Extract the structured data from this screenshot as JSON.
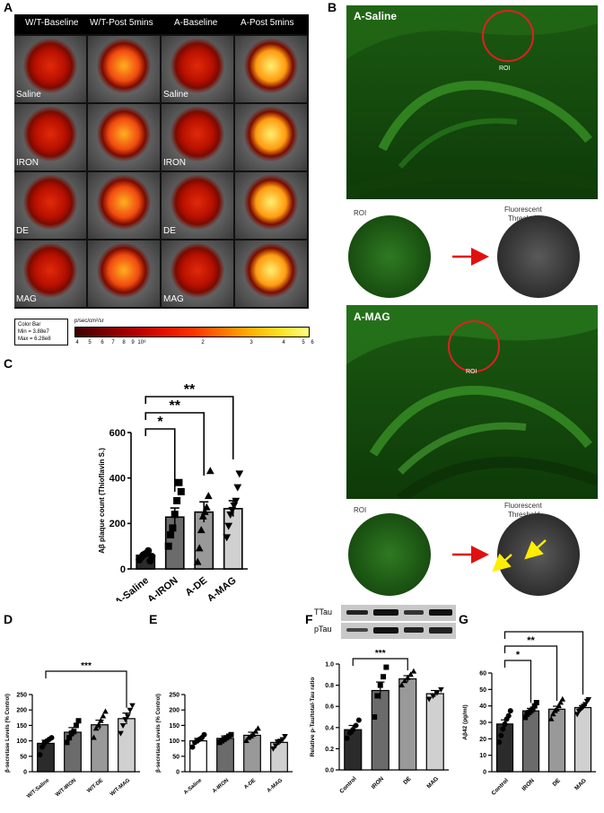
{
  "panels": {
    "a": "A",
    "b": "B",
    "c": "C",
    "d": "D",
    "e": "E",
    "f": "F",
    "g": "G"
  },
  "panel_a": {
    "columns": [
      "W/T-Baseline",
      "W/T-Post 5mins",
      "A-Baseline",
      "A-Post 5mins"
    ],
    "rows": [
      "Saline",
      "IRON",
      "DE",
      "MAG"
    ],
    "intensity": [
      [
        0.35,
        0.75,
        0.35,
        0.95
      ],
      [
        0.3,
        0.65,
        0.35,
        0.85
      ],
      [
        0.4,
        0.75,
        0.4,
        0.9
      ],
      [
        0.35,
        0.75,
        0.4,
        0.95
      ]
    ],
    "colorbar": {
      "box_line1": "Color Bar",
      "box_line2": "Min = 3.88e7",
      "box_line3": "Max = 6.28e8",
      "unit": "p/sec/cm²/sr",
      "ticks": [
        "4",
        "5",
        "6",
        "7",
        "8",
        "9",
        "10⁸",
        "2",
        "3",
        "4",
        "5",
        "6"
      ]
    }
  },
  "panel_b": {
    "saline": {
      "title": "A-Saline",
      "roi": "ROI",
      "roi_small": "ROI",
      "threshold_line1": "Fluorescent",
      "threshold_line2": "Threshold"
    },
    "mag": {
      "title": "A-MAG",
      "roi": "ROI",
      "roi_small": "ROI",
      "threshold_line1": "Fluorescent",
      "threshold_line2": "Threshold"
    }
  },
  "western": {
    "labels": [
      "TTau",
      "pTau"
    ]
  },
  "chart_data": [
    {
      "panel": "C",
      "type": "bar",
      "categories": [
        "A-Saline",
        "A-IRON",
        "A-DE",
        "A-MAG"
      ],
      "values": [
        60,
        228,
        250,
        265
      ],
      "errors": [
        12,
        40,
        45,
        35
      ],
      "points": [
        [
          40,
          50,
          60,
          65,
          70,
          80,
          35,
          55
        ],
        [
          100,
          150,
          180,
          240,
          300,
          380,
          340
        ],
        [
          30,
          90,
          170,
          230,
          250,
          270,
          320,
          430
        ],
        [
          140,
          190,
          240,
          260,
          280,
          300,
          360,
          420
        ]
      ],
      "markers": [
        "circle",
        "square",
        "triangle",
        "triangle-down"
      ],
      "ylabel": "Aβ plaque count (Thioflavin S.)",
      "yticks": [
        "0",
        "200",
        "400",
        "600"
      ],
      "ylim": [
        0,
        600
      ],
      "colors": [
        "#2b2b2b",
        "#6b6b6b",
        "#999999",
        "#d0d0d0"
      ],
      "sig": [
        {
          "from": 0,
          "to": 1,
          "label": "*"
        },
        {
          "from": 0,
          "to": 2,
          "label": "**"
        },
        {
          "from": 0,
          "to": 3,
          "label": "**"
        }
      ]
    },
    {
      "panel": "D",
      "type": "bar",
      "categories": [
        "W/T-Saline",
        "W/T-IRON",
        "W/T-DE",
        "W/T-MAG"
      ],
      "values": [
        92,
        128,
        152,
        172
      ],
      "errors": [
        10,
        15,
        15,
        18
      ],
      "points": [
        [
          55,
          80,
          95,
          100,
          105,
          110
        ],
        [
          95,
          110,
          125,
          130,
          150,
          165
        ],
        [
          110,
          140,
          150,
          165,
          180,
          195
        ],
        [
          125,
          150,
          170,
          180,
          200,
          215
        ]
      ],
      "markers": [
        "circle",
        "square",
        "triangle",
        "triangle-down"
      ],
      "ylabel": "β-secretase Levels (% Control)",
      "yticks": [
        "0",
        "50",
        "100",
        "150",
        "200",
        "250"
      ],
      "ylim": [
        0,
        250
      ],
      "colors": [
        "#2b2b2b",
        "#6b6b6b",
        "#999999",
        "#d0d0d0"
      ],
      "sig": [
        {
          "from": 0,
          "to": 3,
          "label": "***"
        }
      ]
    },
    {
      "panel": "E",
      "type": "bar",
      "categories": [
        "A-Saline",
        "A-IRON",
        "A-DE",
        "A-MAG"
      ],
      "values": [
        100,
        108,
        118,
        95
      ],
      "errors": [
        8,
        8,
        10,
        8
      ],
      "points": [
        [
          80,
          95,
          100,
          105,
          110,
          120
        ],
        [
          95,
          100,
          105,
          110,
          115,
          120
        ],
        [
          100,
          110,
          115,
          120,
          130,
          140
        ],
        [
          75,
          85,
          95,
          100,
          105,
          115
        ]
      ],
      "markers": [
        "circle",
        "square",
        "triangle",
        "triangle-down"
      ],
      "ylabel": "β-secretase Levels (% Control)",
      "yticks": [
        "0",
        "50",
        "100",
        "150",
        "200",
        "250"
      ],
      "ylim": [
        0,
        250
      ],
      "colors": [
        "#ffffff",
        "#6b6b6b",
        "#999999",
        "#d0d0d0"
      ],
      "sig": []
    },
    {
      "panel": "F",
      "type": "bar",
      "categories": [
        "Control",
        "IRON",
        "DE",
        "MAG"
      ],
      "values": [
        0.38,
        0.75,
        0.86,
        0.72
      ],
      "errors": [
        0.04,
        0.08,
        0.03,
        0.03
      ],
      "points": [
        [
          0.3,
          0.35,
          0.38,
          0.42,
          0.47
        ],
        [
          0.5,
          0.7,
          0.8,
          0.88,
          0.97
        ],
        [
          0.8,
          0.84,
          0.87,
          0.9,
          0.93
        ],
        [
          0.67,
          0.7,
          0.73,
          0.76
        ]
      ],
      "markers": [
        "circle",
        "square",
        "triangle",
        "triangle-down"
      ],
      "ylabel": "Relative p-Tau/total-Tau ratio",
      "yticks": [
        "0.0",
        "0.2",
        "0.4",
        "0.6",
        "0.8",
        "1.0"
      ],
      "ylim": [
        0,
        1.0
      ],
      "colors": [
        "#2b2b2b",
        "#6b6b6b",
        "#999999",
        "#d0d0d0"
      ],
      "sig": [
        {
          "from": 0,
          "to": 2,
          "label": "***"
        }
      ]
    },
    {
      "panel": "G",
      "type": "bar",
      "categories": [
        "Control",
        "IRON",
        "DE",
        "MAG"
      ],
      "values": [
        29,
        37,
        38,
        39
      ],
      "errors": [
        2.5,
        1.5,
        1.8,
        1.2
      ],
      "points": [
        [
          18,
          22,
          26,
          29,
          32,
          34,
          37
        ],
        [
          33,
          35,
          36,
          37,
          38,
          40,
          42
        ],
        [
          32,
          35,
          37,
          38,
          40,
          42,
          44
        ],
        [
          35,
          37,
          38,
          39,
          40,
          41,
          43,
          44
        ]
      ],
      "markers": [
        "circle",
        "square",
        "triangle",
        "triangle-down"
      ],
      "ylabel": "Aβ42 (pg/ml)",
      "yticks": [
        "0",
        "10",
        "20",
        "30",
        "40",
        "50",
        "60"
      ],
      "ylim": [
        0,
        60
      ],
      "colors": [
        "#2b2b2b",
        "#6b6b6b",
        "#999999",
        "#d0d0d0"
      ],
      "sig": [
        {
          "from": 0,
          "to": 1,
          "label": "*"
        },
        {
          "from": 0,
          "to": 2,
          "label": "**"
        },
        {
          "from": 0,
          "to": 3,
          "label": "**"
        }
      ]
    }
  ]
}
